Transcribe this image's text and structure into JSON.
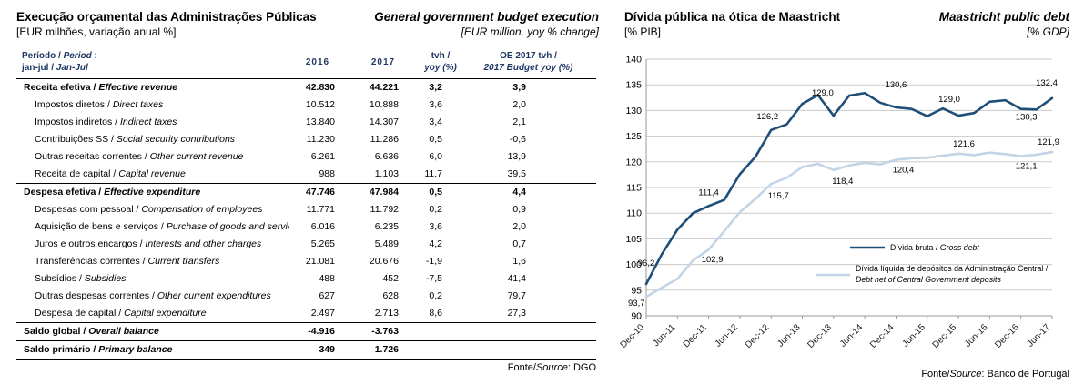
{
  "left_panel": {
    "title_pt": "Execução orçamental das Administrações Públicas",
    "title_en": "General government budget execution",
    "subtitle_pt": "[EUR milhões, variação anual %]",
    "subtitle_en": "[EUR million, yoy % change]",
    "table": {
      "header": {
        "period_pt": "Período /",
        "period_en": "Period",
        "period_colon": ":",
        "period2_pt": "jan-jul /",
        "period2_en": "Jan-Jul",
        "col_2016": "2016",
        "col_2017": "2017",
        "col_tvh_line1": "tvh /",
        "col_tvh_line2": "yoy (%)",
        "col_oe_line1": "OE 2017 tvh /",
        "col_oe_line2": "2017 Budget yoy (%)"
      },
      "rows": [
        {
          "pt": "Receita efetiva",
          "en": "Effective revenue",
          "v2016": "42.830",
          "v2017": "44.221",
          "tvh": "3,2",
          "oe": "3,9",
          "bold": true,
          "indent": false,
          "rule_above": false
        },
        {
          "pt": "Impostos diretos",
          "en": "Direct taxes",
          "v2016": "10.512",
          "v2017": "10.888",
          "tvh": "3,6",
          "oe": "2,0",
          "bold": false,
          "indent": true,
          "rule_above": false
        },
        {
          "pt": "Impostos indiretos",
          "en": "Indirect taxes",
          "v2016": "13.840",
          "v2017": "14.307",
          "tvh": "3,4",
          "oe": "2,1",
          "bold": false,
          "indent": true,
          "rule_above": false
        },
        {
          "pt": "Contribuições SS",
          "en": "Social security contributions",
          "v2016": "11.230",
          "v2017": "11.286",
          "tvh": "0,5",
          "oe": "-0,6",
          "bold": false,
          "indent": true,
          "rule_above": false
        },
        {
          "pt": "Outras receitas correntes",
          "en": "Other current revenue",
          "v2016": "6.261",
          "v2017": "6.636",
          "tvh": "6,0",
          "oe": "13,9",
          "bold": false,
          "indent": true,
          "rule_above": false
        },
        {
          "pt": "Receita de capital",
          "en": "Capital revenue",
          "v2016": "988",
          "v2017": "1.103",
          "tvh": "11,7",
          "oe": "39,5",
          "bold": false,
          "indent": true,
          "rule_above": false
        },
        {
          "pt": "Despesa efetiva",
          "en": "Effective expenditure",
          "v2016": "47.746",
          "v2017": "47.984",
          "tvh": "0,5",
          "oe": "4,4",
          "bold": true,
          "indent": false,
          "rule_above": true
        },
        {
          "pt": "Despesas com pessoal",
          "en": "Compensation of employees",
          "v2016": "11.771",
          "v2017": "11.792",
          "tvh": "0,2",
          "oe": "0,9",
          "bold": false,
          "indent": true,
          "rule_above": false
        },
        {
          "pt": "Aquisição de bens e serviços",
          "en": "Purchase of goods and services",
          "v2016": "6.016",
          "v2017": "6.235",
          "tvh": "3,6",
          "oe": "2,0",
          "bold": false,
          "indent": true,
          "rule_above": false
        },
        {
          "pt": "Juros e outros encargos",
          "en": "Interests and other charges",
          "v2016": "5.265",
          "v2017": "5.489",
          "tvh": "4,2",
          "oe": "0,7",
          "bold": false,
          "indent": true,
          "rule_above": false
        },
        {
          "pt": "Transferências correntes",
          "en": "Current transfers",
          "v2016": "21.081",
          "v2017": "20.676",
          "tvh": "-1,9",
          "oe": "1,6",
          "bold": false,
          "indent": true,
          "rule_above": false
        },
        {
          "pt": "Subsídios",
          "en": "Subsidies",
          "v2016": "488",
          "v2017": "452",
          "tvh": "-7,5",
          "oe": "41,4",
          "bold": false,
          "indent": true,
          "rule_above": false
        },
        {
          "pt": "Outras despesas correntes",
          "en": "Other current expenditures",
          "v2016": "627",
          "v2017": "628",
          "tvh": "0,2",
          "oe": "79,7",
          "bold": false,
          "indent": true,
          "rule_above": false
        },
        {
          "pt": "Despesa de capital",
          "en": "Capital expenditure",
          "v2016": "2.497",
          "v2017": "2.713",
          "tvh": "8,6",
          "oe": "27,3",
          "bold": false,
          "indent": true,
          "rule_above": false
        },
        {
          "pt": "Saldo global",
          "en": "Overall balance",
          "v2016": "-4.916",
          "v2017": "-3.763",
          "tvh": "",
          "oe": "",
          "bold": true,
          "indent": false,
          "rule_above": true
        },
        {
          "pt": "Saldo primário",
          "en": "Primary balance",
          "v2016": "349",
          "v2017": "1.726",
          "tvh": "",
          "oe": "",
          "bold": true,
          "indent": false,
          "rule_above": true
        }
      ]
    },
    "source_pt": "Fonte/",
    "source_en": "Source",
    "source_rest": ": DGO"
  },
  "right_panel": {
    "source_pt": "Fonte/",
    "source_en": "Source",
    "source_rest": ": Banco de Portugal"
  },
  "chart_data": {
    "type": "line",
    "title_pt": "Dívida pública na ótica de Maastricht",
    "title_en": "Maastricht public debt",
    "subtitle_pt": "[% PIB]",
    "subtitle_en": "[% GDP]",
    "ylim": [
      90,
      140
    ],
    "ytick_step": 5,
    "grid": true,
    "legend_position": "inside-right",
    "points_per_tick": 2,
    "x_ticks": [
      "Dec-10",
      "Jun-11",
      "Dec-11",
      "Jun-12",
      "Dec-12",
      "Jun-13",
      "Dec-13",
      "Jun-14",
      "Dec-14",
      "Jun-15",
      "Dec-15",
      "Jun-16",
      "Dec-16",
      "Jun-17"
    ],
    "series": [
      {
        "name": "Dívida bruta / Gross debt",
        "line_name": "gross-debt-line",
        "color": "#1f4e79",
        "stroke_width": 2.6,
        "values": [
          96.2,
          102.0,
          106.8,
          110.0,
          111.4,
          112.6,
          117.6,
          121.0,
          126.2,
          127.3,
          131.3,
          133.0,
          129.0,
          132.9,
          133.4,
          131.5,
          130.6,
          130.3,
          128.9,
          130.4,
          129.0,
          129.5,
          131.7,
          132.0,
          130.3,
          130.2,
          132.4
        ],
        "point_labels": [
          {
            "i": 0,
            "t": "96,2",
            "dx": 0,
            "dy": -20
          },
          {
            "i": 4,
            "t": "111,4",
            "dx": 0,
            "dy": -12
          },
          {
            "i": 8,
            "t": "126,2",
            "dx": -4,
            "dy": -12
          },
          {
            "i": 12,
            "t": "129,0",
            "dx": -12,
            "dy": -22
          },
          {
            "i": 16,
            "t": "130,6",
            "dx": 0,
            "dy": -22
          },
          {
            "i": 20,
            "t": "129,0",
            "dx": -10,
            "dy": -15
          },
          {
            "i": 24,
            "t": "130,3",
            "dx": 6,
            "dy": 12
          },
          {
            "i": 26,
            "t": "132,4",
            "dx": -6,
            "dy": -14
          }
        ]
      },
      {
        "name": "Dívida líquida de depósitos da Administração Central / Debt net of Central Government deposits",
        "line_name": "net-debt-line",
        "color": "#c3d4e6",
        "stroke_width": 2.6,
        "values": [
          93.7,
          95.5,
          97.2,
          100.8,
          102.9,
          106.5,
          110.2,
          112.8,
          115.7,
          116.9,
          119.0,
          119.6,
          118.4,
          119.3,
          119.8,
          119.5,
          120.4,
          120.7,
          120.8,
          121.2,
          121.6,
          121.3,
          121.8,
          121.5,
          121.1,
          121.4,
          121.9
        ],
        "point_labels": [
          {
            "i": 0,
            "t": "93,7",
            "dx": -20,
            "dy": 10,
            "a": "start"
          },
          {
            "i": 4,
            "t": "102,9",
            "dx": 4,
            "dy": 14
          },
          {
            "i": 8,
            "t": "115,7",
            "dx": 8,
            "dy": 16
          },
          {
            "i": 12,
            "t": "118,4",
            "dx": 10,
            "dy": 15
          },
          {
            "i": 16,
            "t": "120,4",
            "dx": 8,
            "dy": 14
          },
          {
            "i": 20,
            "t": "121,6",
            "dx": 6,
            "dy": -8
          },
          {
            "i": 24,
            "t": "121,1",
            "dx": 6,
            "dy": 14
          },
          {
            "i": 26,
            "t": "121,9",
            "dx": -4,
            "dy": -8
          }
        ]
      }
    ],
    "legend": [
      {
        "series": 0,
        "lines": [
          [
            {
              "t": "Dívida bruta / "
            },
            {
              "t": "Gross debt",
              "i": true
            }
          ]
        ]
      },
      {
        "series": 1,
        "lines": [
          [
            {
              "t": "Dívida líquida de depósitos da Administração Central / "
            }
          ],
          [
            {
              "t": "Debt net of Central Government deposits",
              "i": true
            }
          ]
        ]
      }
    ]
  }
}
